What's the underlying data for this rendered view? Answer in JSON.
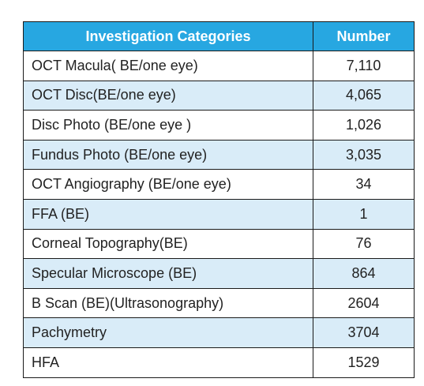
{
  "table": {
    "headers": [
      "Investigation Categories",
      "Number"
    ],
    "rows": [
      [
        "OCT  Macula( BE/one eye)",
        "7,110"
      ],
      [
        "OCT Disc(BE/one eye)",
        "4,065"
      ],
      [
        "Disc Photo (BE/one eye )",
        "1,026"
      ],
      [
        "Fundus Photo (BE/one eye)",
        "3,035"
      ],
      [
        "OCT Angiography (BE/one eye)",
        "34"
      ],
      [
        "FFA (BE)",
        "1"
      ],
      [
        "Corneal Topography(BE)",
        "76"
      ],
      [
        "Specular Microscope (BE)",
        "864"
      ],
      [
        "B Scan (BE)(Ultrasonography)",
        "2604"
      ],
      [
        "Pachymetry",
        "3704"
      ],
      [
        "HFA",
        "1529"
      ]
    ]
  },
  "colors": {
    "header_bg": "#27a7e1",
    "header_text": "#ffffff",
    "stripe": "#d9ecf8",
    "border": "#1a1a1a"
  }
}
